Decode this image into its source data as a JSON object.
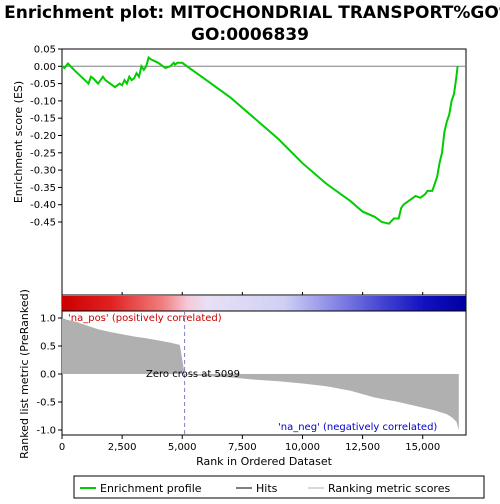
{
  "chart_data": [
    {
      "type": "line",
      "title_line1": "Enrichment plot: MITOCHONDRIAL TRANSPORT%GO%",
      "title_line2": "GO:0006839",
      "ylabel": "Enrichment score (ES)",
      "ylim": [
        -0.48,
        0.05
      ],
      "xlim": [
        0,
        16800
      ],
      "yticks": [
        0.05,
        0.0,
        -0.05,
        -0.1,
        -0.15,
        -0.2,
        -0.25,
        -0.3,
        -0.35,
        -0.4,
        -0.45
      ],
      "ytick_labels": [
        "0.05",
        "0.00",
        "-0.05",
        "-0.10",
        "-0.15",
        "-0.20",
        "-0.25",
        "-0.30",
        "-0.35",
        "-0.40",
        "-0.45"
      ],
      "line_color": "#00cc00",
      "series": [
        {
          "x": [
            0,
            100,
            250,
            500,
            800,
            1100,
            1200,
            1300,
            1500,
            1700,
            1800,
            2000,
            2200,
            2400,
            2500,
            2600,
            2700,
            2800,
            2900,
            3000,
            3100,
            3200,
            3300,
            3400,
            3500,
            3600,
            3700,
            4000,
            4300,
            4500,
            4650,
            4700,
            4800,
            5000,
            5200,
            6000,
            7000,
            8000,
            9000,
            10000,
            11000,
            12000,
            12500,
            13000,
            13300,
            13600,
            13800,
            14000,
            14100,
            14200,
            14400,
            14600,
            14700,
            14900,
            15100,
            15200,
            15400,
            15500,
            15600,
            15700,
            15800,
            15900,
            16000,
            16100,
            16200,
            16300,
            16400,
            16450
          ],
          "y": [
            0.0,
            -0.005,
            0.008,
            -0.01,
            -0.03,
            -0.05,
            -0.03,
            -0.035,
            -0.05,
            -0.03,
            -0.04,
            -0.05,
            -0.06,
            -0.05,
            -0.055,
            -0.04,
            -0.05,
            -0.03,
            -0.04,
            -0.035,
            -0.02,
            -0.03,
            0.0,
            -0.01,
            0.0,
            0.025,
            0.02,
            0.01,
            -0.005,
            0.0,
            0.01,
            0.005,
            0.01,
            0.01,
            0.0,
            -0.04,
            -0.09,
            -0.15,
            -0.21,
            -0.28,
            -0.34,
            -0.39,
            -0.42,
            -0.435,
            -0.45,
            -0.455,
            -0.44,
            -0.44,
            -0.41,
            -0.4,
            -0.39,
            -0.38,
            -0.375,
            -0.38,
            -0.37,
            -0.36,
            -0.36,
            -0.34,
            -0.32,
            -0.28,
            -0.25,
            -0.19,
            -0.16,
            -0.14,
            -0.1,
            -0.08,
            -0.03,
            0.0
          ]
        }
      ]
    },
    {
      "type": "rug",
      "hits_x": [
        230,
        1190,
        1270,
        1370,
        1690,
        1720,
        2240,
        2520,
        2700,
        2820,
        2910,
        2990,
        3120,
        3200,
        3230,
        3360,
        3510,
        3630,
        3720,
        4020,
        4610,
        4720,
        4850,
        5060,
        5770,
        6820,
        7570,
        9010,
        9810,
        10910,
        11350,
        11980,
        12660,
        13010,
        13280,
        13620,
        13740,
        13830,
        13960,
        14080,
        14180,
        14260,
        14350,
        14430,
        14500,
        14590,
        14680,
        14780,
        14880,
        14990,
        15120,
        15220,
        15300,
        15380,
        15450,
        15520,
        15580,
        15640,
        15700,
        15760,
        15820,
        15880,
        15930,
        15990,
        16040,
        16100,
        16150,
        16200,
        16260,
        16320,
        16370
      ]
    },
    {
      "type": "area",
      "ylabel": "Ranked list metric (PreRanked)",
      "xlabel": "Rank in Ordered Dataset",
      "ylim": [
        -1.05,
        1.15
      ],
      "yticks": [
        1.0,
        0.5,
        0.0,
        -0.5,
        -1.0
      ],
      "ytick_labels": [
        "1.0",
        "0.5",
        "0.0",
        "-0.5",
        "-1.0"
      ],
      "xticks": [
        0,
        2500,
        5000,
        7500,
        10000,
        12500,
        15000
      ],
      "xtick_labels": [
        "0",
        "2,500",
        "5,000",
        "7,500",
        "10,000",
        "12,500",
        "15,000"
      ],
      "x": [
        0,
        200,
        600,
        1000,
        1500,
        2000,
        2500,
        3000,
        3500,
        4000,
        4500,
        4900,
        5099,
        5400,
        6000,
        7000,
        8000,
        9000,
        10000,
        11000,
        12000,
        13000,
        14000,
        15000,
        15500,
        16000,
        16200,
        16400,
        16500
      ],
      "y": [
        1.0,
        0.97,
        0.93,
        0.87,
        0.8,
        0.75,
        0.71,
        0.67,
        0.64,
        0.6,
        0.56,
        0.52,
        0.0,
        -0.02,
        -0.04,
        -0.06,
        -0.1,
        -0.13,
        -0.17,
        -0.22,
        -0.3,
        -0.42,
        -0.5,
        -0.6,
        -0.65,
        -0.72,
        -0.77,
        -0.85,
        -1.0
      ],
      "fill_color": "#b0b0b0",
      "annotations": {
        "zero_cross": "Zero cross at 5099",
        "pos_label": "'na_pos' (positively correlated)",
        "neg_label": "'na_neg' (negatively correlated)"
      },
      "zero_cross_x": 5099,
      "pos_color": "#cc0000",
      "neg_color": "#0000cc"
    }
  ],
  "legend": {
    "items": [
      {
        "label": "Enrichment profile",
        "color": "#00cc00"
      },
      {
        "label": "Hits",
        "color": "#000000"
      },
      {
        "label": "Ranking metric scores",
        "color": "#b0b0b0"
      }
    ]
  }
}
